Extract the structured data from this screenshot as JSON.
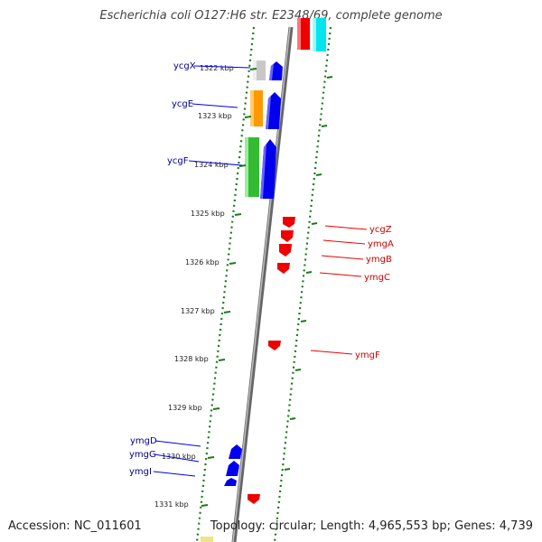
{
  "title": "Escherichia coli O127:H6 str. E2348/69, complete genome",
  "footer": {
    "accession": "Accession: NC_011601",
    "summary": "Topology: circular; Length: 4,965,553 bp; Genes: 4,739"
  },
  "ticks": [
    "1322 kbp",
    "1323 kbp",
    "1324 kbp",
    "1325 kbp",
    "1326 kbp",
    "1327 kbp",
    "1328 kbp",
    "1329 kbp",
    "1330 kbp",
    "1331 kbp"
  ],
  "genes_left": [
    "ycgX",
    "ycgE",
    "ycgF",
    "ymgD",
    "ymgG",
    "ymgI"
  ],
  "genes_right": [
    "ycgZ",
    "ymgA",
    "ymgB",
    "ymgC",
    "ymgF"
  ],
  "colors": {
    "forward_strand": "#0000ee",
    "reverse_strand": "#ee0000",
    "left_label": "#00008b",
    "right_label": "#cc0000",
    "tick": "#1a7a1a",
    "backbone": "#888888"
  }
}
